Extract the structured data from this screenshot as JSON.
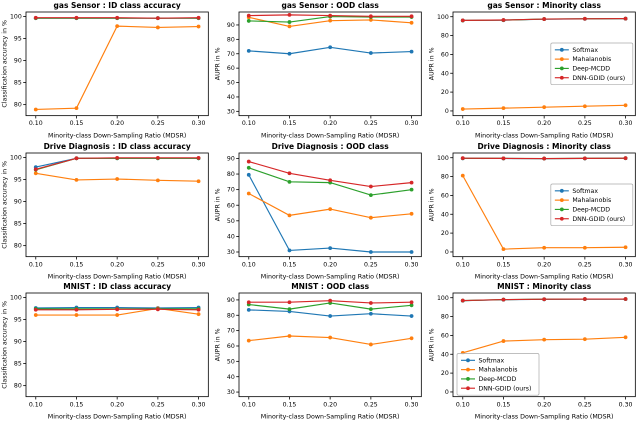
{
  "figure": {
    "background": "#ffffff",
    "grid": "3x3"
  },
  "colors": {
    "softmax": "#1f77b4",
    "mahalanobis": "#ff7f0e",
    "deep_mcdd": "#2ca02c",
    "dnn_gdid": "#d62728"
  },
  "legend_labels": [
    "Softmax",
    "Mahalanobis",
    "Deep-MCDD",
    "DNN-GDID (ours)"
  ],
  "chart_data": [
    {
      "type": "line",
      "title": "gas Sensor :  ID class accuracy",
      "xlabel": "Minority-class Down-Sampling Ratio (MDSR)",
      "ylabel": "Classification accuracy  in %",
      "x": [
        0.1,
        0.15,
        0.2,
        0.25,
        0.3
      ],
      "xticks": [
        "0.10",
        "0.15",
        "0.20",
        "0.25",
        "0.30"
      ],
      "xlim": [
        0.088,
        0.312
      ],
      "ylim": [
        77.5,
        101.0
      ],
      "yticks": [
        80,
        85,
        90,
        95,
        100
      ],
      "legend": null,
      "series": [
        {
          "name": "Softmax",
          "color_key": "softmax",
          "values": [
            99.6,
            99.6,
            99.6,
            99.6,
            99.6
          ]
        },
        {
          "name": "Mahalanobis",
          "color_key": "mahalanobis",
          "values": [
            78.9,
            79.2,
            97.8,
            97.5,
            97.7
          ]
        },
        {
          "name": "Deep-MCDD",
          "color_key": "deep_mcdd",
          "values": [
            99.6,
            99.6,
            99.6,
            99.6,
            99.6
          ]
        },
        {
          "name": "DNN-GDID (ours)",
          "color_key": "dnn_gdid",
          "values": [
            99.7,
            99.7,
            99.7,
            99.6,
            99.7
          ]
        }
      ]
    },
    {
      "type": "line",
      "title": "gas Sensor :  OOD class",
      "xlabel": "Minority-class Down-Sampling Ratio (MDSR)",
      "ylabel": "AUPR in %",
      "x": [
        0.1,
        0.15,
        0.2,
        0.25,
        0.3
      ],
      "xticks": [
        "0.10",
        "0.15",
        "0.20",
        "0.25",
        "0.30"
      ],
      "xlim": [
        0.088,
        0.312
      ],
      "ylim": [
        27,
        99
      ],
      "yticks": [
        30,
        40,
        50,
        60,
        70,
        80,
        90
      ],
      "legend": null,
      "series": [
        {
          "name": "Softmax",
          "color_key": "softmax",
          "values": [
            72,
            70,
            74.5,
            70.5,
            71.5
          ]
        },
        {
          "name": "Mahalanobis",
          "color_key": "mahalanobis",
          "values": [
            95.3,
            89,
            93,
            93.5,
            91.5
          ]
        },
        {
          "name": "Deep-MCDD",
          "color_key": "deep_mcdd",
          "values": [
            92.8,
            92,
            95.8,
            95.5,
            95.5
          ]
        },
        {
          "name": "DNN-GDID (ours)",
          "color_key": "dnn_gdid",
          "values": [
            96.5,
            97,
            96.5,
            96,
            96
          ]
        }
      ]
    },
    {
      "type": "line",
      "title": "gas Sensor :  Minority class",
      "xlabel": "Minority-class Down-Sampling Ratio (MDSR)",
      "ylabel": "AUPR in %",
      "x": [
        0.1,
        0.15,
        0.2,
        0.25,
        0.3
      ],
      "xticks": [
        "0.10",
        "0.15",
        "0.20",
        "0.25",
        "0.30"
      ],
      "xlim": [
        0.088,
        0.312
      ],
      "ylim": [
        -5,
        105
      ],
      "yticks": [
        0,
        20,
        40,
        60,
        80,
        100
      ],
      "legend": {
        "position": "right-center"
      },
      "series": [
        {
          "name": "Softmax",
          "color_key": "softmax",
          "values": [
            96,
            96.3,
            97.4,
            97.7,
            97.9
          ]
        },
        {
          "name": "Mahalanobis",
          "color_key": "mahalanobis",
          "values": [
            2,
            3,
            4,
            5,
            6
          ]
        },
        {
          "name": "Deep-MCDD",
          "color_key": "deep_mcdd",
          "values": [
            96,
            96.4,
            97.5,
            97.8,
            98
          ]
        },
        {
          "name": "DNN-GDID (ours)",
          "color_key": "dnn_gdid",
          "values": [
            96.1,
            96.5,
            97.5,
            97.8,
            98
          ]
        }
      ]
    },
    {
      "type": "line",
      "title": "Drive Diagnosis :  ID class accuracy",
      "xlabel": "Minority-class Down-Sampling Ratio (MDSR)",
      "ylabel": "Classification accuracy  in %",
      "x": [
        0.1,
        0.15,
        0.2,
        0.25,
        0.3
      ],
      "xticks": [
        "0.10",
        "0.15",
        "0.20",
        "0.25",
        "0.30"
      ],
      "xlim": [
        0.088,
        0.312
      ],
      "ylim": [
        77.5,
        101.0
      ],
      "yticks": [
        80,
        85,
        90,
        95,
        100
      ],
      "legend": null,
      "series": [
        {
          "name": "Softmax",
          "color_key": "softmax",
          "values": [
            97.8,
            99.8,
            99.8,
            99.8,
            99.8
          ]
        },
        {
          "name": "Mahalanobis",
          "color_key": "mahalanobis",
          "values": [
            96.4,
            94.9,
            95.1,
            94.8,
            94.6
          ]
        },
        {
          "name": "Deep-MCDD",
          "color_key": "deep_mcdd",
          "values": [
            97.2,
            99.8,
            99.8,
            99.8,
            99.8
          ]
        },
        {
          "name": "DNN-GDID (ours)",
          "color_key": "dnn_gdid",
          "values": [
            97.3,
            99.8,
            99.9,
            99.9,
            99.9
          ]
        }
      ]
    },
    {
      "type": "line",
      "title": "Drive Diagnosis :  OOD class",
      "xlabel": "Minority-class Down-Sampling Ratio (MDSR)",
      "ylabel": "AUPR in %",
      "x": [
        0.1,
        0.15,
        0.2,
        0.25,
        0.3
      ],
      "xticks": [
        "0.10",
        "0.15",
        "0.20",
        "0.25",
        "0.30"
      ],
      "xlim": [
        0.088,
        0.312
      ],
      "ylim": [
        27,
        93.5
      ],
      "yticks": [
        30,
        40,
        50,
        60,
        70,
        80,
        90
      ],
      "legend": null,
      "series": [
        {
          "name": "Softmax",
          "color_key": "softmax",
          "values": [
            79.5,
            31,
            32.5,
            30,
            30
          ]
        },
        {
          "name": "Mahalanobis",
          "color_key": "mahalanobis",
          "values": [
            67.5,
            53.5,
            57.5,
            52,
            54.5
          ]
        },
        {
          "name": "Deep-MCDD",
          "color_key": "deep_mcdd",
          "values": [
            84,
            75,
            74.5,
            66.5,
            70
          ]
        },
        {
          "name": "DNN-GDID (ours)",
          "color_key": "dnn_gdid",
          "values": [
            88,
            80.5,
            76,
            72,
            74.5
          ]
        }
      ]
    },
    {
      "type": "line",
      "title": "Drive Diagnosis :  Minority class",
      "xlabel": "Minority-class Down-Sampling Ratio (MDSR)",
      "ylabel": "AUPR in %",
      "x": [
        0.1,
        0.15,
        0.2,
        0.25,
        0.3
      ],
      "xticks": [
        "0.10",
        "0.15",
        "0.20",
        "0.25",
        "0.30"
      ],
      "xlim": [
        0.088,
        0.312
      ],
      "ylim": [
        -5,
        105
      ],
      "yticks": [
        0,
        20,
        40,
        60,
        80,
        100
      ],
      "legend": {
        "position": "right-center"
      },
      "series": [
        {
          "name": "Softmax",
          "color_key": "softmax",
          "values": [
            99.3,
            99.2,
            99.0,
            99.2,
            99.4
          ]
        },
        {
          "name": "Mahalanobis",
          "color_key": "mahalanobis",
          "values": [
            81,
            3,
            4.5,
            4.5,
            5
          ]
        },
        {
          "name": "Deep-MCDD",
          "color_key": "deep_mcdd",
          "values": [
            99.4,
            99.3,
            99.1,
            99.3,
            99.5
          ]
        },
        {
          "name": "DNN-GDID (ours)",
          "color_key": "dnn_gdid",
          "values": [
            99.5,
            99.3,
            99.1,
            99.3,
            99.5
          ]
        }
      ]
    },
    {
      "type": "line",
      "title": "MNIST :  ID class accuracy",
      "xlabel": "Minority-class Down-Sampling Ratio (MDSR)",
      "ylabel": "Classification accuracy  in %",
      "x": [
        0.1,
        0.15,
        0.2,
        0.25,
        0.3
      ],
      "xticks": [
        "0.10",
        "0.15",
        "0.20",
        "0.25",
        "0.30"
      ],
      "xlim": [
        0.088,
        0.312
      ],
      "ylim": [
        77.5,
        101.0
      ],
      "yticks": [
        80,
        85,
        90,
        95,
        100
      ],
      "legend": null,
      "series": [
        {
          "name": "Softmax",
          "color_key": "softmax",
          "values": [
            97.6,
            97.7,
            97.7,
            97.6,
            97.7
          ]
        },
        {
          "name": "Mahalanobis",
          "color_key": "mahalanobis",
          "values": [
            96.0,
            96.0,
            96.0,
            97.5,
            96.2
          ]
        },
        {
          "name": "Deep-MCDD",
          "color_key": "deep_mcdd",
          "values": [
            97.4,
            97.4,
            97.4,
            97.4,
            97.4
          ]
        },
        {
          "name": "DNN-GDID (ours)",
          "color_key": "dnn_gdid",
          "values": [
            97.2,
            97.2,
            97.3,
            97.3,
            97.2
          ]
        }
      ]
    },
    {
      "type": "line",
      "title": "MNIST :  OOD class",
      "xlabel": "Minority-class Down-Sampling Ratio (MDSR)",
      "ylabel": "AUPR in %",
      "x": [
        0.1,
        0.15,
        0.2,
        0.25,
        0.3
      ],
      "xticks": [
        "0.10",
        "0.15",
        "0.20",
        "0.25",
        "0.30"
      ],
      "xlim": [
        0.088,
        0.312
      ],
      "ylim": [
        27,
        94.5
      ],
      "yticks": [
        30,
        40,
        50,
        60,
        70,
        80,
        90
      ],
      "legend": null,
      "series": [
        {
          "name": "Softmax",
          "color_key": "softmax",
          "values": [
            83.5,
            82.5,
            79.5,
            81,
            79.5
          ]
        },
        {
          "name": "Mahalanobis",
          "color_key": "mahalanobis",
          "values": [
            63.5,
            66.5,
            65.5,
            61,
            65
          ]
        },
        {
          "name": "Deep-MCDD",
          "color_key": "deep_mcdd",
          "values": [
            87,
            84,
            88,
            84,
            86.5
          ]
        },
        {
          "name": "DNN-GDID (ours)",
          "color_key": "dnn_gdid",
          "values": [
            88.5,
            88.5,
            89.5,
            88,
            88.5
          ]
        }
      ]
    },
    {
      "type": "line",
      "title": "MNIST :  Minority class",
      "xlabel": "Minority-class Down-Sampling Ratio (MDSR)",
      "ylabel": "AUPR in %",
      "x": [
        0.1,
        0.15,
        0.2,
        0.25,
        0.3
      ],
      "xticks": [
        "0.10",
        "0.15",
        "0.20",
        "0.25",
        "0.30"
      ],
      "xlim": [
        0.088,
        0.312
      ],
      "ylim": [
        -5,
        105
      ],
      "yticks": [
        0,
        20,
        40,
        60,
        80,
        100
      ],
      "legend": {
        "position": "lower-left"
      },
      "series": [
        {
          "name": "Softmax",
          "color_key": "softmax",
          "values": [
            96.8,
            97.9,
            98.3,
            98.5,
            98.5
          ]
        },
        {
          "name": "Mahalanobis",
          "color_key": "mahalanobis",
          "values": [
            41.5,
            54,
            55.5,
            56,
            58
          ]
        },
        {
          "name": "Deep-MCDD",
          "color_key": "deep_mcdd",
          "values": [
            96.9,
            98,
            98.4,
            98.6,
            98.6
          ]
        },
        {
          "name": "DNN-GDID (ours)",
          "color_key": "dnn_gdid",
          "values": [
            97,
            98,
            98.4,
            98.6,
            98.6
          ]
        }
      ]
    }
  ]
}
